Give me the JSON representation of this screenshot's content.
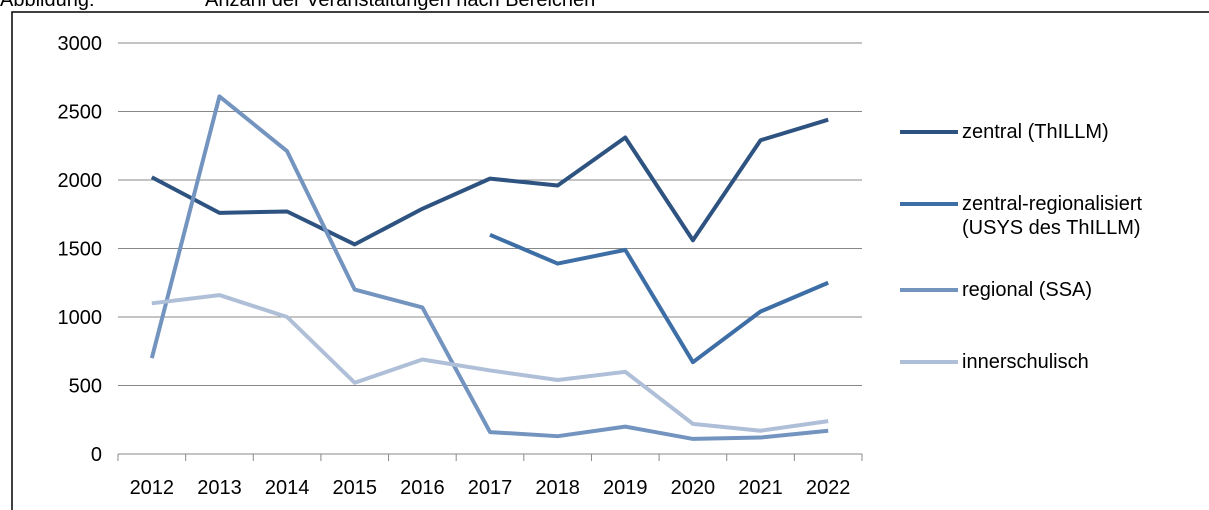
{
  "chart_data": {
    "type": "line",
    "label": "Abbildung:",
    "title": "Anzahl der Veranstaltungen nach Bereichen",
    "categories": [
      "2012",
      "2013",
      "2014",
      "2015",
      "2016",
      "2017",
      "2018",
      "2019",
      "2020",
      "2021",
      "2022"
    ],
    "series": [
      {
        "name": "zentral (ThILLM)",
        "color": "#2e5380",
        "values": [
          2020,
          1760,
          1770,
          1530,
          1790,
          2010,
          1960,
          2310,
          1560,
          2290,
          2440
        ]
      },
      {
        "name": "zentral-regionalisiert (USYS des ThILLM)",
        "color": "#3d6ea5",
        "values": [
          null,
          null,
          null,
          null,
          null,
          1600,
          1390,
          1490,
          670,
          1040,
          1250
        ]
      },
      {
        "name": "regional (SSA)",
        "color": "#7494c0",
        "values": [
          700,
          2610,
          2210,
          1200,
          1070,
          160,
          130,
          200,
          110,
          120,
          170
        ]
      },
      {
        "name": "innerschulisch",
        "color": "#afbfd8",
        "values": [
          1100,
          1160,
          1000,
          520,
          690,
          610,
          540,
          600,
          220,
          170,
          240
        ]
      }
    ],
    "ylim": [
      0,
      3000
    ],
    "yticks": [
      0,
      500,
      1000,
      1500,
      2000,
      2500,
      3000
    ],
    "grid": true,
    "legend": "right"
  }
}
